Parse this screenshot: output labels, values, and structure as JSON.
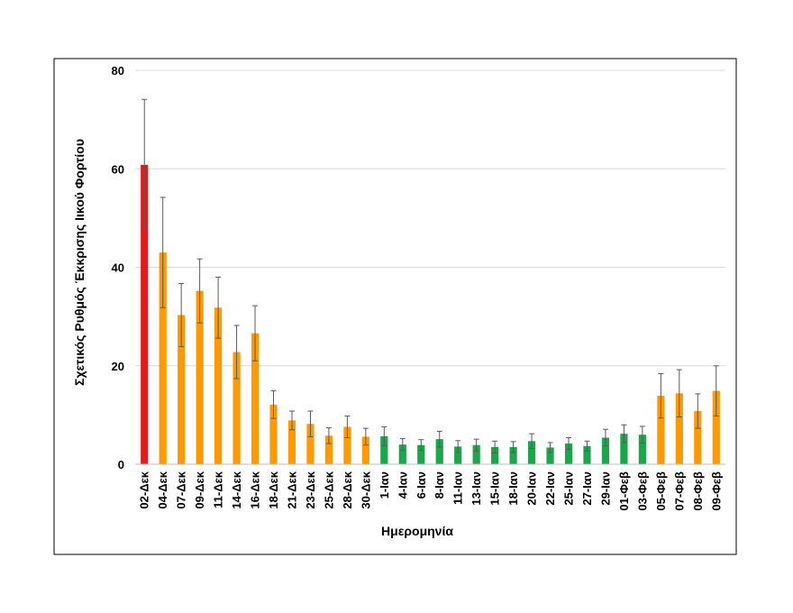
{
  "chart_data": {
    "type": "bar",
    "title": "",
    "xlabel": "Ημερομηνία",
    "ylabel": "Σχετικός Ρυθμός Έκκρισης Ιικού Φορτίου",
    "ylim": [
      0,
      80
    ],
    "yticks": [
      0,
      20,
      40,
      60,
      80
    ],
    "grid": true,
    "legend": "none",
    "categories": [
      "02-Δεκ",
      "04-Δεκ",
      "07-Δεκ",
      "09-Δεκ",
      "11-Δεκ",
      "14-Δεκ",
      "16-Δεκ",
      "18-Δεκ",
      "21-Δεκ",
      "23-Δεκ",
      "25-Δεκ",
      "28-Δεκ",
      "30-Δεκ",
      "1-Ιαν",
      "4-Ιαν",
      "6-Ιαν",
      "8-Ιαν",
      "11-Ιαν",
      "13-Ιαν",
      "15-Ιαν",
      "18-Ιαν",
      "20-Ιαν",
      "22-Ιαν",
      "25-Ιαν",
      "27-Ιαν",
      "29-Ιαν",
      "01-Φεβ",
      "03-Φεβ",
      "05-Φεβ",
      "07-Φεβ",
      "08-Φεβ",
      "09-Φεβ"
    ],
    "values": [
      60.8,
      43.0,
      30.3,
      35.2,
      31.8,
      22.8,
      26.6,
      12.1,
      8.9,
      8.2,
      5.8,
      7.6,
      5.6,
      5.7,
      4.0,
      3.9,
      5.1,
      3.6,
      3.9,
      3.5,
      3.5,
      4.7,
      3.4,
      4.2,
      3.7,
      5.4,
      6.2,
      6.0,
      13.9,
      14.4,
      10.8,
      14.9
    ],
    "errors": [
      13.3,
      11.2,
      6.4,
      6.5,
      6.2,
      5.4,
      5.6,
      2.8,
      1.9,
      2.6,
      1.6,
      2.2,
      1.7,
      1.9,
      1.2,
      1.1,
      1.6,
      1.2,
      1.2,
      1.2,
      1.1,
      1.5,
      1.0,
      1.2,
      1.0,
      1.7,
      1.8,
      1.7,
      4.5,
      4.8,
      3.5,
      5.1
    ],
    "colors": [
      "#e31a1c",
      "#ff9900",
      "#ff9900",
      "#ff9900",
      "#ff9900",
      "#ff9900",
      "#ff9900",
      "#ff9900",
      "#ff9900",
      "#ff9900",
      "#ff9900",
      "#ff9900",
      "#ff9900",
      "#1aa64a",
      "#1aa64a",
      "#1aa64a",
      "#1aa64a",
      "#1aa64a",
      "#1aa64a",
      "#1aa64a",
      "#1aa64a",
      "#1aa64a",
      "#1aa64a",
      "#1aa64a",
      "#1aa64a",
      "#1aa64a",
      "#1aa64a",
      "#1aa64a",
      "#ff9900",
      "#ff9900",
      "#ff9900",
      "#ff9900"
    ]
  }
}
